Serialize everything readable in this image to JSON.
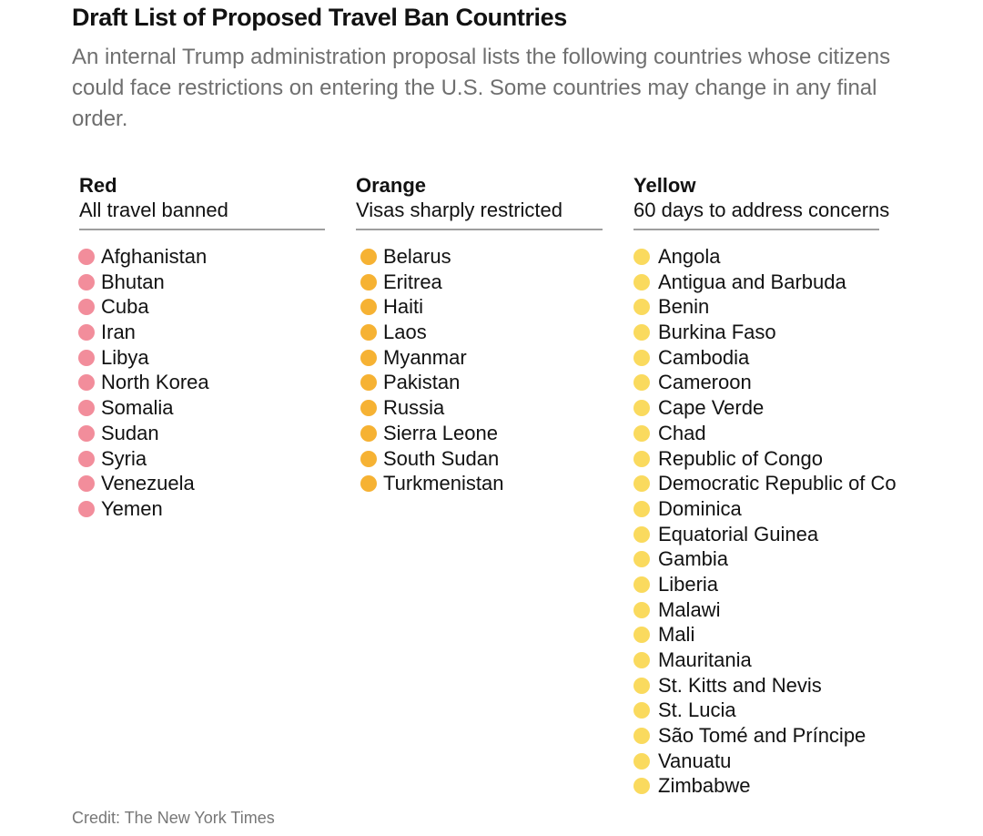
{
  "title": "Draft List of Proposed Travel Ban Countries",
  "subtitle": "An internal Trump administration proposal lists the following countries whose citizens could face restrictions on entering the U.S. Some countries may change in any final order.",
  "columns": [
    {
      "heading": "Red",
      "description": "All travel banned",
      "dot_color": "#f28d9b",
      "countries": [
        "Afghanistan",
        "Bhutan",
        "Cuba",
        "Iran",
        "Libya",
        "North Korea",
        "Somalia",
        "Sudan",
        "Syria",
        "Venezuela",
        "Yemen"
      ]
    },
    {
      "heading": "Orange",
      "description": "Visas sharply restricted",
      "dot_color": "#f6b233",
      "countries": [
        "Belarus",
        "Eritrea",
        "Haiti",
        "Laos",
        "Myanmar",
        "Pakistan",
        "Russia",
        "Sierra Leone",
        "South Sudan",
        "Turkmenistan"
      ]
    },
    {
      "heading": "Yellow",
      "description": "60 days to address concerns",
      "dot_color": "#fada5e",
      "countries": [
        "Angola",
        "Antigua and Barbuda",
        "Benin",
        "Burkina Faso",
        "Cambodia",
        "Cameroon",
        "Cape Verde",
        "Chad",
        "Republic of Congo",
        "Democratic Republic of Co",
        "Dominica",
        "Equatorial Guinea",
        "Gambia",
        "Liberia",
        "Malawi",
        "Mali",
        "Mauritania",
        "St. Kitts and Nevis",
        "St. Lucia",
        "São Tomé and Príncipe",
        "Vanuatu",
        "Zimbabwe"
      ]
    }
  ],
  "credit": "Credit: The New York Times"
}
